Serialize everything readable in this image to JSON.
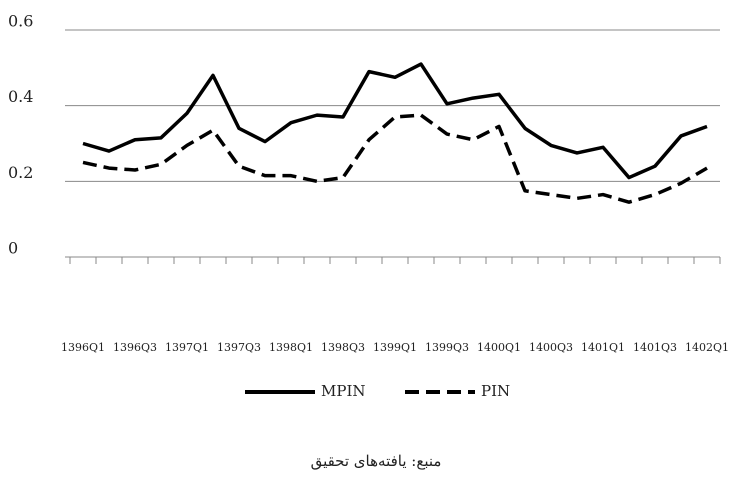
{
  "chart_data": {
    "type": "line",
    "categories": [
      "1396Q1",
      null,
      "1396Q3",
      null,
      "1397Q1",
      null,
      "1397Q3",
      null,
      "1398Q1",
      null,
      "1398Q3",
      null,
      "1399Q1",
      null,
      "1399Q3",
      null,
      "1400Q1",
      null,
      "1400Q3",
      null,
      "1401Q1",
      null,
      "1401Q3",
      null,
      "1402Q1"
    ],
    "series": [
      {
        "name": "MPIN",
        "color": "#000000",
        "dash": false,
        "values": [
          0.3,
          0.28,
          0.31,
          0.315,
          0.38,
          0.48,
          0.34,
          0.305,
          0.355,
          0.375,
          0.37,
          0.49,
          0.475,
          0.51,
          0.405,
          0.42,
          0.43,
          0.34,
          0.295,
          0.275,
          0.29,
          0.21,
          0.24,
          0.32,
          0.345
        ]
      },
      {
        "name": "PIN",
        "color": "#000000",
        "dash": true,
        "values": [
          0.25,
          0.235,
          0.23,
          0.245,
          0.295,
          0.335,
          0.24,
          0.215,
          0.215,
          0.2,
          0.21,
          0.31,
          0.37,
          0.375,
          0.325,
          0.31,
          0.345,
          0.175,
          0.165,
          0.155,
          0.165,
          0.145,
          0.165,
          0.195,
          0.235
        ]
      }
    ],
    "ylim": [
      0,
      0.6
    ],
    "yticks": [
      0,
      0.2,
      0.4,
      0.6
    ],
    "grid": true,
    "source": "منبع: یافته‌های تحقیق"
  }
}
